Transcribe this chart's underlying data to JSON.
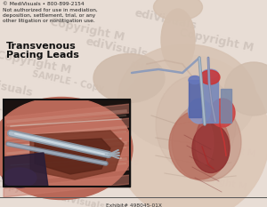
{
  "bg_color": "#e8ddd5",
  "main_bg": "#e8ddd5",
  "title_line1": "Transvenous",
  "title_line2": "Pacing Leads",
  "copyright_text": "© MediVisuals • 800-899-2154\nNot authorized for use in mediation,\ndeposition, settlement, trial, or any\nother litigation or nonlitigation use.",
  "exhibit_text": "Exhibit# 498045-01X",
  "border_color": "#111111",
  "title_color": "#111111",
  "copyright_color": "#222222",
  "exhibit_color": "#333333",
  "wm_color": "#c8bcb4",
  "figsize": [
    3.0,
    2.33
  ],
  "dpi": 100,
  "body_color": "#ddc8b8",
  "body_shadow": "#c4a898",
  "heart_red": "#c03838",
  "heart_dark": "#902020",
  "aorta_blue": "#5566aa",
  "vessel_blue": "#7788bb",
  "lead_silver": "#a0aab0",
  "inset_bg": "#b87060",
  "inset_cavity": "#7a3828",
  "inset_tissue": "#c08878",
  "inset_muscle": "#d4a090",
  "inset_dark": "#3a2840"
}
